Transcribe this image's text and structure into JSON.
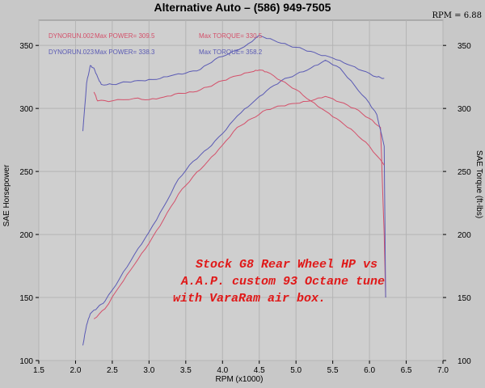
{
  "chart_data": {
    "type": "line",
    "title": "Alternative Auto – (586) 949-7505",
    "rpm_readout": "RPM = 6.88",
    "xlabel": "RPM (x1000)",
    "ylabel_left": "SAE Horsepower",
    "ylabel_right": "SAE Torque (ft-lbs)",
    "xlim": [
      1.5,
      7.0
    ],
    "ylim": [
      100,
      370
    ],
    "x_ticks": [
      "1.5",
      "2.0",
      "2.5",
      "3.0",
      "3.5",
      "4.0",
      "4.5",
      "5.0",
      "5.5",
      "6.0",
      "6.5",
      "7.0"
    ],
    "y_ticks_left": [
      "100",
      "150",
      "200",
      "250",
      "300",
      "350"
    ],
    "y_ticks_right": [
      "100",
      "150",
      "200",
      "250",
      "300",
      "350"
    ],
    "grid": true,
    "legend": [
      {
        "run": "DYNORUN.002",
        "power": "Max POWER= 309.5",
        "torque": "Max TORQUE= 330.5",
        "color": "#d4506a"
      },
      {
        "run": "DYNORUN.023",
        "power": "Max POWER= 338.3",
        "torque": "Max TORQUE= 358.2",
        "color": "#5a5ab4"
      }
    ],
    "annotation": [
      "Stock G8 Rear Wheel HP vs",
      "A.A.P. custom 93 Octane tune",
      "with VaraRam air box."
    ],
    "series": [
      {
        "name": "DYNORUN.002 Power",
        "color": "#d4506a",
        "x": [
          2.25,
          2.4,
          2.6,
          2.8,
          3.0,
          3.2,
          3.4,
          3.6,
          3.8,
          4.0,
          4.2,
          4.4,
          4.6,
          4.8,
          5.0,
          5.2,
          5.4,
          5.6,
          5.8,
          6.0,
          6.15,
          6.2,
          6.22
        ],
        "y": [
          133,
          141,
          159,
          176,
          193,
          212,
          232,
          246,
          258,
          271,
          285,
          292,
          299,
          302,
          304,
          306,
          309.5,
          305,
          300,
          292,
          285,
          200,
          150
        ]
      },
      {
        "name": "DYNORUN.023 Power",
        "color": "#5a5ab4",
        "x": [
          2.1,
          2.15,
          2.2,
          2.3,
          2.4,
          2.6,
          2.8,
          3.0,
          3.2,
          3.4,
          3.6,
          3.8,
          4.0,
          4.2,
          4.4,
          4.6,
          4.8,
          5.0,
          5.2,
          5.4,
          5.6,
          5.8,
          6.0,
          6.1,
          6.2,
          6.22
        ],
        "y": [
          112,
          128,
          137,
          142,
          147,
          165,
          184,
          202,
          222,
          244,
          258,
          268,
          280,
          294,
          304,
          314,
          322,
          327,
          332,
          338.3,
          332,
          318,
          304,
          295,
          270,
          150
        ]
      },
      {
        "name": "DYNORUN.002 Torque",
        "color": "#d4506a",
        "x": [
          2.25,
          2.3,
          2.5,
          2.8,
          3.0,
          3.2,
          3.4,
          3.6,
          3.8,
          4.0,
          4.2,
          4.4,
          4.5,
          4.6,
          4.8,
          5.0,
          5.2,
          5.4,
          5.6,
          5.8,
          6.0,
          6.2
        ],
        "y": [
          313,
          306,
          306,
          308,
          307,
          309,
          312,
          313,
          317,
          322,
          326,
          329,
          330.5,
          329,
          322,
          315,
          306,
          298,
          290,
          281,
          270,
          255
        ]
      },
      {
        "name": "DYNORUN.023 Torque",
        "color": "#5a5ab4",
        "x": [
          2.1,
          2.15,
          2.2,
          2.25,
          2.3,
          2.35,
          2.5,
          2.7,
          2.9,
          3.1,
          3.3,
          3.5,
          3.7,
          3.9,
          4.1,
          4.3,
          4.5,
          4.7,
          4.9,
          5.1,
          5.3,
          5.5,
          5.7,
          5.9,
          6.1,
          6.2
        ],
        "y": [
          282,
          320,
          334,
          332,
          325,
          319,
          319,
          321,
          322,
          323,
          326,
          328,
          331,
          339,
          344,
          349,
          358,
          354,
          350,
          347,
          343,
          340,
          335,
          330,
          325,
          324
        ]
      }
    ]
  }
}
